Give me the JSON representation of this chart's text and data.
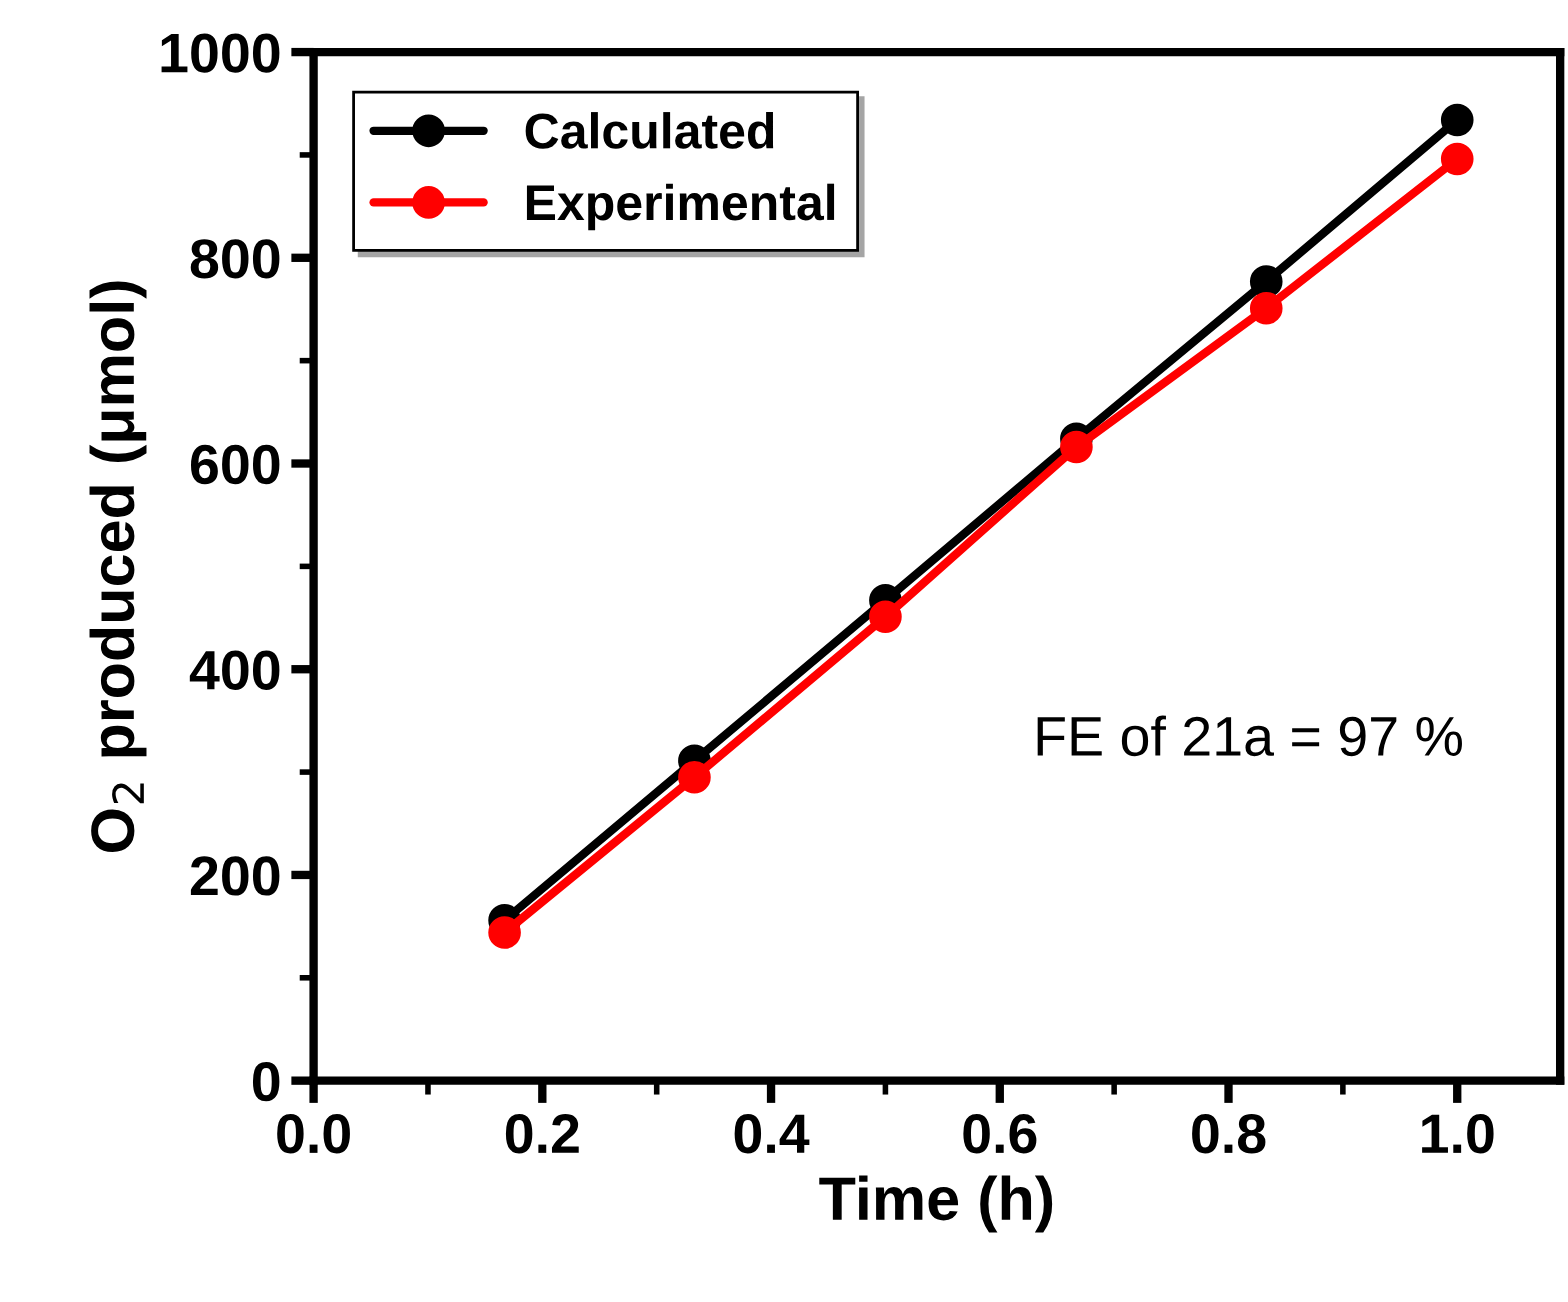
{
  "chart_data": {
    "type": "line",
    "xlabel": "Time (h)",
    "ylabel": "O$_{2}$ produced (μmol)",
    "x": [
      0.167,
      0.333,
      0.5,
      0.667,
      0.833,
      1.0
    ],
    "series": [
      {
        "name": "Calculated",
        "color": "#000000",
        "values": [
          156,
          311,
          467,
          624,
          777,
          934
        ]
      },
      {
        "name": "Experimental",
        "color": "#ff0000",
        "values": [
          144,
          295,
          451,
          616,
          751,
          896
        ]
      }
    ],
    "xlim": [
      0.0,
      1.09
    ],
    "xticks": [
      {
        "value": 0.0,
        "label": "0.0"
      },
      0.2,
      0.4,
      0.6,
      0.8,
      {
        "value": 1.0,
        "label": "1.0"
      }
    ],
    "ylim": [
      0,
      1000
    ],
    "yticks": [
      0,
      200,
      400,
      600,
      800,
      1000
    ],
    "annotations": [
      "FE of 21a = 97 %"
    ],
    "legend": "top left",
    "marker": "circle",
    "line_style": "solid",
    "grid": false
  }
}
